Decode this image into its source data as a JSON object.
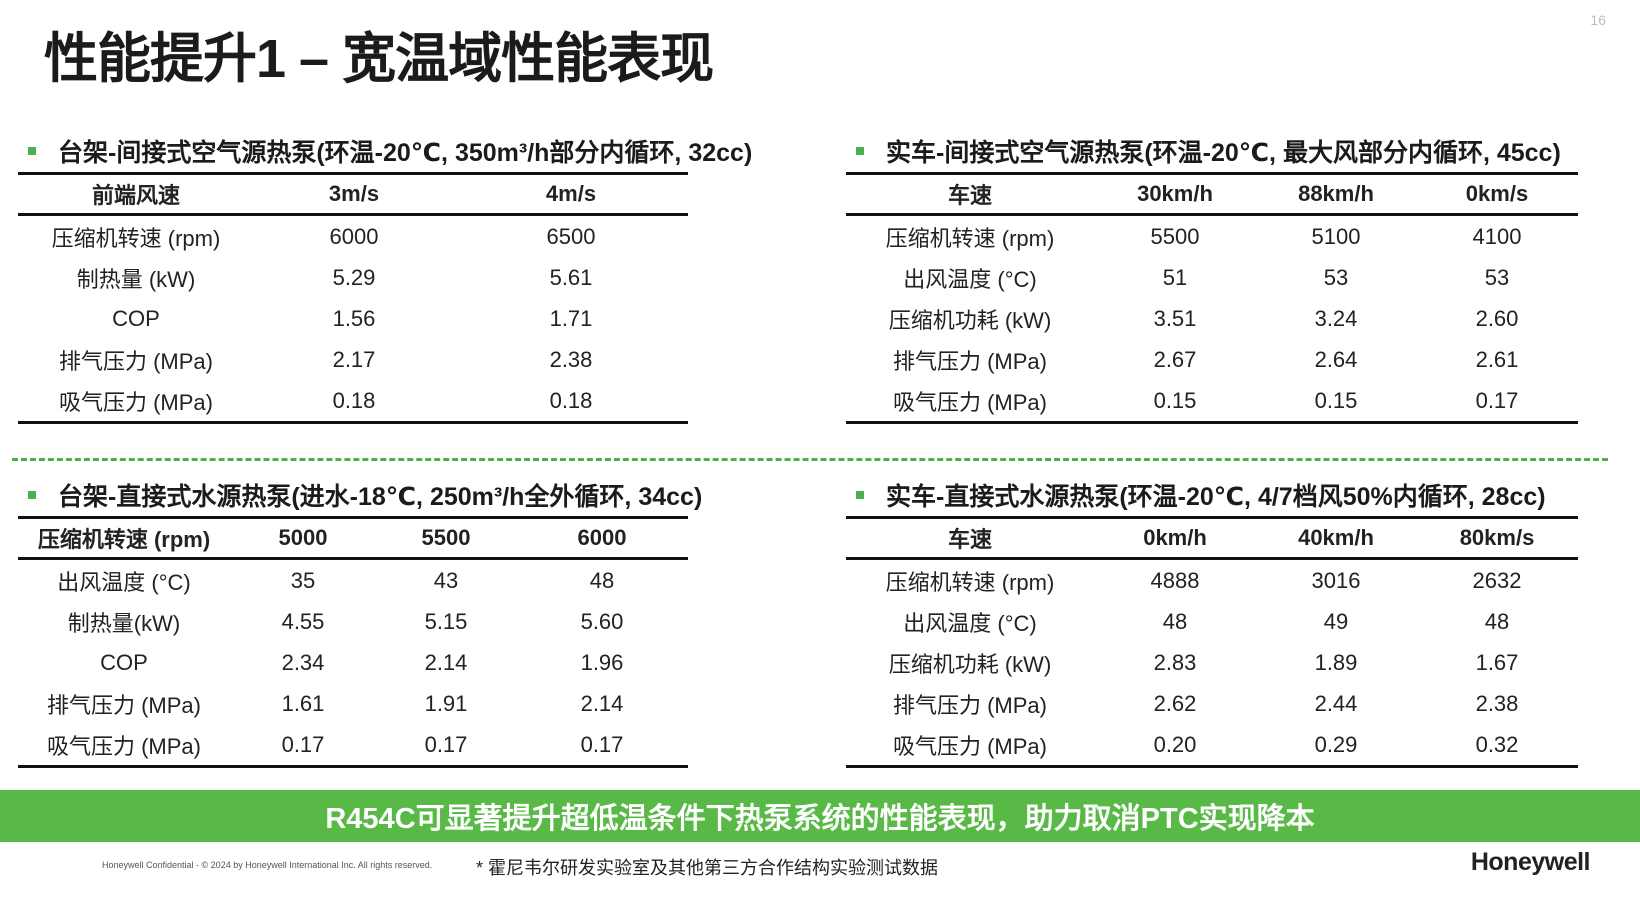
{
  "page_number": "16",
  "title": "性能提升1 – 宽温域性能表现",
  "panels": {
    "top_left": {
      "heading": "台架-间接式空气源热泵(环温-20℃, 350m³/h部分内循环, 32cc)",
      "columns": [
        "前端风速",
        "3m/s",
        "4m/s"
      ],
      "rows": [
        [
          "压缩机转速 (rpm)",
          "6000",
          "6500"
        ],
        [
          "制热量 (kW)",
          "5.29",
          "5.61"
        ],
        [
          "COP",
          "1.56",
          "1.71"
        ],
        [
          "排气压力 (MPa)",
          "2.17",
          "2.38"
        ],
        [
          "吸气压力 (MPa)",
          "0.18",
          "0.18"
        ]
      ]
    },
    "top_right": {
      "heading": "实车-间接式空气源热泵(环温-20℃, 最大风部分内循环, 45cc)",
      "columns": [
        "车速",
        "30km/h",
        "88km/h",
        "0km/s"
      ],
      "rows": [
        [
          "压缩机转速 (rpm)",
          "5500",
          "5100",
          "4100"
        ],
        [
          "出风温度 (°C)",
          "51",
          "53",
          "53"
        ],
        [
          "压缩机功耗 (kW)",
          "3.51",
          "3.24",
          "2.60"
        ],
        [
          "排气压力 (MPa)",
          "2.67",
          "2.64",
          "2.61"
        ],
        [
          "吸气压力 (MPa)",
          "0.15",
          "0.15",
          "0.17"
        ]
      ]
    },
    "bottom_left": {
      "heading": "台架-直接式水源热泵(进水-18℃, 250m³/h全外循环, 34cc)",
      "columns": [
        "压缩机转速 (rpm)",
        "5000",
        "5500",
        "6000"
      ],
      "rows": [
        [
          "出风温度 (°C)",
          "35",
          "43",
          "48"
        ],
        [
          "制热量(kW)",
          "4.55",
          "5.15",
          "5.60"
        ],
        [
          "COP",
          "2.34",
          "2.14",
          "1.96"
        ],
        [
          "排气压力 (MPa)",
          "1.61",
          "1.91",
          "2.14"
        ],
        [
          "吸气压力 (MPa)",
          "0.17",
          "0.17",
          "0.17"
        ]
      ]
    },
    "bottom_right": {
      "heading": "实车-直接式水源热泵(环温-20℃, 4/7档风50%内循环, 28cc)",
      "columns": [
        "车速",
        "0km/h",
        "40km/h",
        "80km/s"
      ],
      "rows": [
        [
          "压缩机转速 (rpm)",
          "4888",
          "3016",
          "2632"
        ],
        [
          "出风温度 (°C)",
          "48",
          "49",
          "48"
        ],
        [
          "压缩机功耗 (kW)",
          "2.83",
          "1.89",
          "1.67"
        ],
        [
          "排气压力 (MPa)",
          "2.62",
          "2.44",
          "2.38"
        ],
        [
          "吸气压力 (MPa)",
          "0.20",
          "0.29",
          "0.32"
        ]
      ]
    }
  },
  "banner": "R454C可显著提升超低温条件下热泵系统的性能表现，助力取消PTC实现降本",
  "confidential": "Honeywell Confidential - © 2024 by Honeywell International Inc. All rights reserved.",
  "footnote": "* 霍尼韦尔研发实验室及其他第三方合作结构实验测试数据",
  "logo": "Honeywell",
  "colors": {
    "accent_green": "#58b947",
    "bullet_green": "#4caf50",
    "rule": "#111111"
  }
}
